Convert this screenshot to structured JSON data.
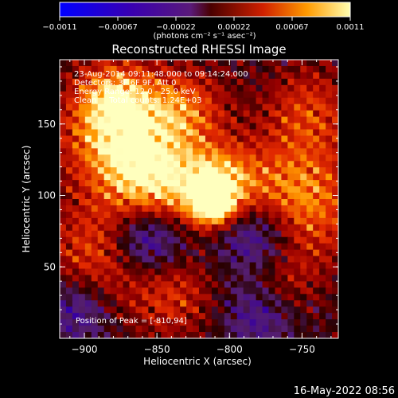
{
  "colorbar": {
    "min_label": "-0.0011",
    "tick_labels": [
      "-0.0011",
      "-0.00067",
      "-0.00022",
      "0.00022",
      "0.00067",
      "0.0011"
    ],
    "units_label": "(photons cm⁻² s⁻¹ asec⁻²)"
  },
  "title": "Reconstructed RHESSI Image",
  "info": {
    "time_range": "23-Aug-2014 09:11:48.000 to 09:14:24.000",
    "detectors": "Detectors: 3F 6F 9F, Att 0",
    "energy": "Energy Range: 12.0 - 25.0 keV",
    "method": "Clean     Total counts: 1.24E+03",
    "peak": "Position of Peak = [-810,94]"
  },
  "footer_timestamp": "16-May-2022 08:56",
  "chart_data": {
    "type": "heatmap",
    "title": "Reconstructed RHESSI Image",
    "xlabel": "Heliocentric X (arcsec)",
    "ylabel": "Heliocentric Y (arcsec)",
    "xlim": [
      -917,
      -725
    ],
    "ylim": [
      0,
      195
    ],
    "x_ticks": [
      -900,
      -850,
      -800,
      -750
    ],
    "y_ticks": [
      50,
      100,
      150
    ],
    "x_tick_labels": [
      "−900",
      "−850",
      "−800",
      "−750"
    ],
    "y_tick_labels": [
      "50",
      "100",
      "150"
    ],
    "color_range": [
      -0.0011,
      0.0011
    ],
    "colormap": "RHESSI blue-purple-red-yellow-white",
    "peak_position": [
      -810,
      94
    ],
    "grid": false
  }
}
